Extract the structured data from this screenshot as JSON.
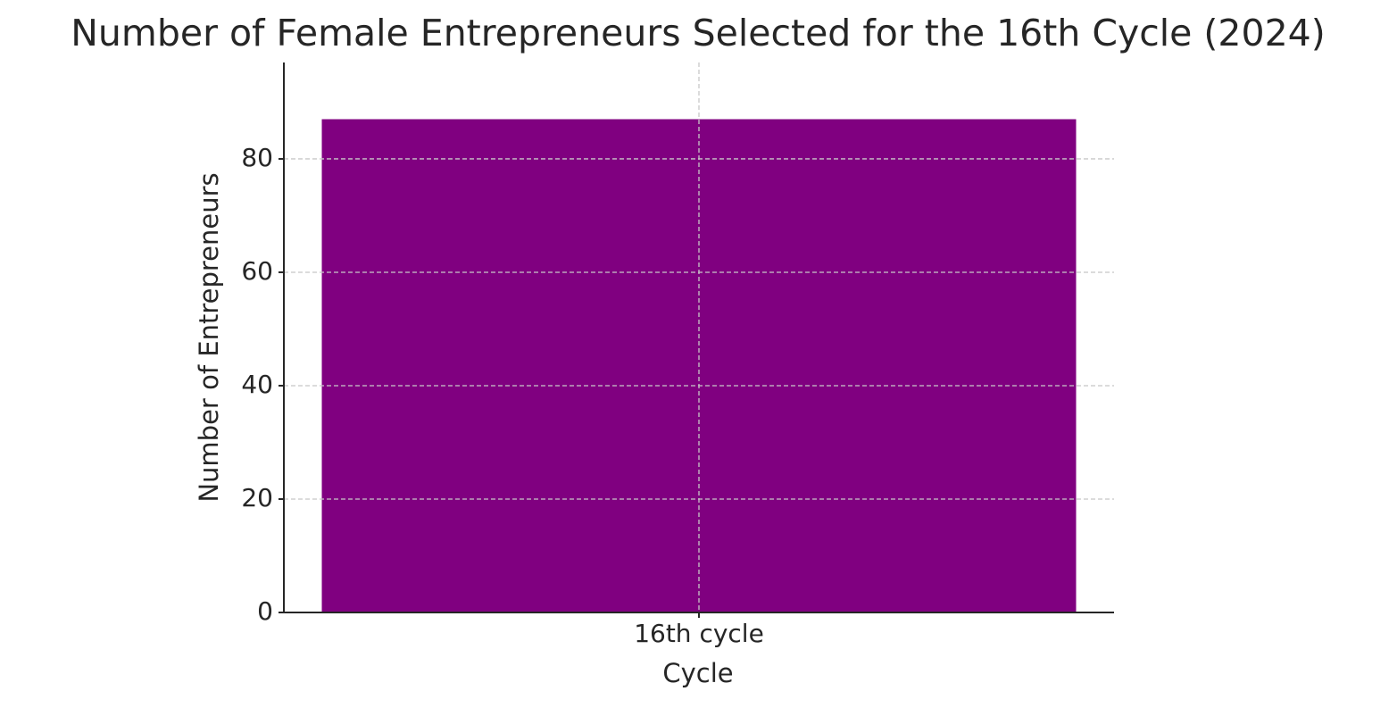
{
  "chart_data": {
    "type": "bar",
    "title": "Number of Female Entrepreneurs Selected for the 16th Cycle (2024)",
    "x_label": "Cycle",
    "y_label": "Number of Entrepreneurs",
    "categories": [
      "16th cycle"
    ],
    "values": [
      87
    ],
    "color": "#800080",
    "ylim": [
      0,
      97
    ],
    "yticks": [
      0,
      20,
      40,
      60,
      80
    ],
    "grid": true
  }
}
